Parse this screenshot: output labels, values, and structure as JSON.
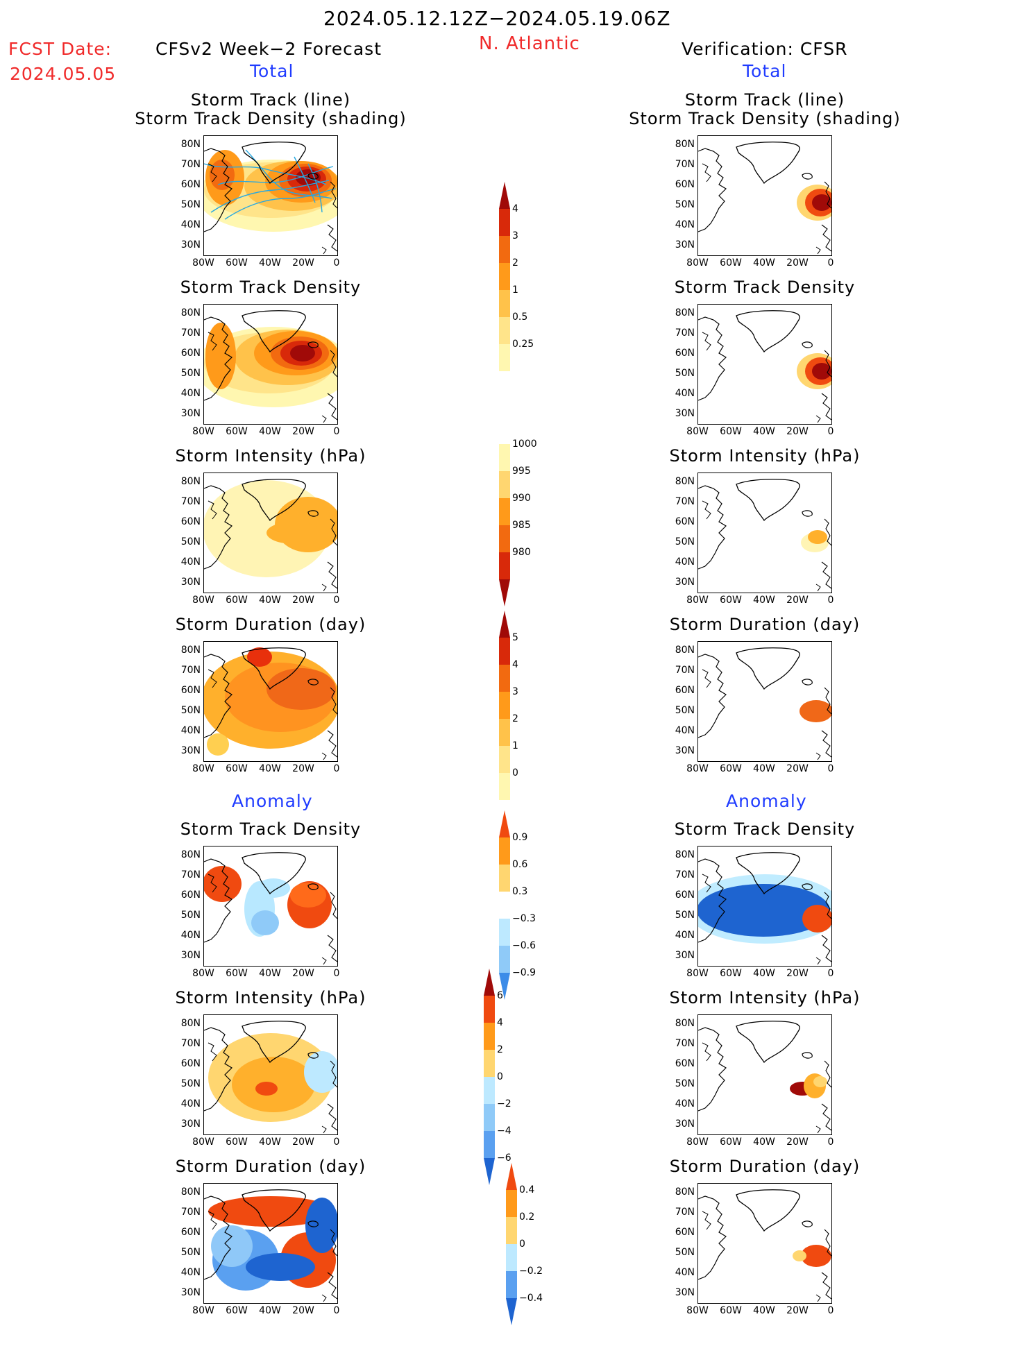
{
  "header": {
    "period": "2024.05.12.12Z−2024.05.19.06Z",
    "region": "N. Atlantic",
    "fcst_label": "FCST Date:",
    "fcst_date": "2024.05.05",
    "model_title": "CFSv2 Week−2 Forecast",
    "verif_title": "Verification: CFSR",
    "total_left": "Total",
    "total_right": "Total",
    "anomaly_left": "Anomaly",
    "anomaly_right": "Anomaly"
  },
  "panels": {
    "track_line": "Storm Track (line)",
    "track_density_shading": "Storm Track Density (shading)",
    "track_density": "Storm Track Density",
    "intensity": "Storm Intensity (hPa)",
    "duration": "Storm Duration (day)"
  },
  "axes": {
    "lat": [
      "80N",
      "70N",
      "60N",
      "50N",
      "40N",
      "30N"
    ],
    "lon": [
      "80W",
      "60W",
      "40W",
      "20W",
      "0"
    ]
  },
  "colorbars": {
    "density_total": [
      "4",
      "3",
      "2",
      "1",
      "0.5",
      "0.25"
    ],
    "intensity_total": [
      "1000",
      "995",
      "990",
      "985",
      "980"
    ],
    "duration_total": [
      "5",
      "4",
      "3",
      "2",
      "1",
      "0"
    ],
    "density_anom": [
      "0.9",
      "0.6",
      "0.3",
      "−0.3",
      "−0.6",
      "−0.9"
    ],
    "intensity_anom": [
      "6",
      "4",
      "2",
      "0",
      "−2",
      "−4",
      "−6"
    ],
    "duration_anom": [
      "0.4",
      "0.2",
      "0",
      "−0.2",
      "−0.4"
    ]
  },
  "colors": {
    "title_red": "#f02a2a",
    "title_blue": "#1f3bff",
    "track_line": "#28a8e0"
  }
}
